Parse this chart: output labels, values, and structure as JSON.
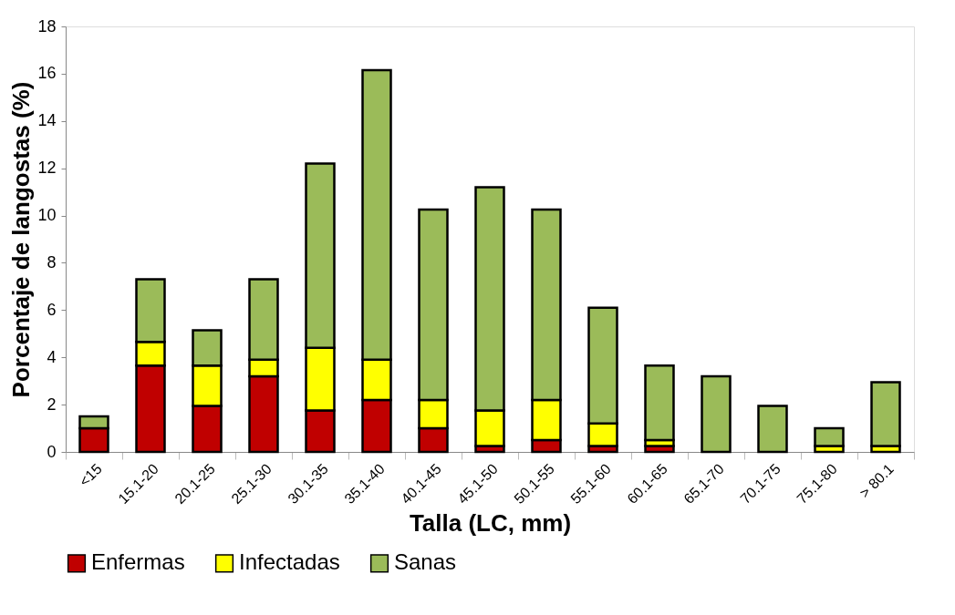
{
  "chart_data": {
    "type": "bar",
    "stacked": true,
    "xlabel": "Talla (LC, mm)",
    "ylabel": "Porcentaje de langostas (%)",
    "categories": [
      "<15",
      "15.1-20",
      "20.1-25",
      "25.1-30",
      "30.1-35",
      "35.1-40",
      "40.1-45",
      "45.1-50",
      "50.1-55",
      "55.1-60",
      "60.1-65",
      "65.1-70",
      "70.1-75",
      "75.1-80",
      "> 80.1"
    ],
    "series": [
      {
        "name": "Enfermas",
        "color": "#c00000",
        "values": [
          1.0,
          3.65,
          1.95,
          3.2,
          1.75,
          2.2,
          1.0,
          0.25,
          0.5,
          0.25,
          0.25,
          0,
          0,
          0,
          0
        ]
      },
      {
        "name": "Infectadas",
        "color": "#ffff00",
        "values": [
          0,
          1.0,
          1.7,
          0.7,
          2.65,
          1.7,
          1.2,
          1.5,
          1.7,
          0.95,
          0.25,
          0,
          0,
          0.25,
          0.25
        ]
      },
      {
        "name": "Sanas",
        "color": "#9bbb59",
        "values": [
          0.5,
          2.65,
          1.5,
          3.4,
          7.8,
          12.25,
          8.05,
          9.45,
          8.05,
          4.9,
          3.15,
          3.2,
          1.95,
          0.75,
          2.7
        ]
      }
    ],
    "ylim": [
      0,
      18
    ],
    "yticks": [
      0,
      2,
      4,
      6,
      8,
      10,
      12,
      14,
      16,
      18
    ],
    "grid": false,
    "legend": "bottom"
  }
}
